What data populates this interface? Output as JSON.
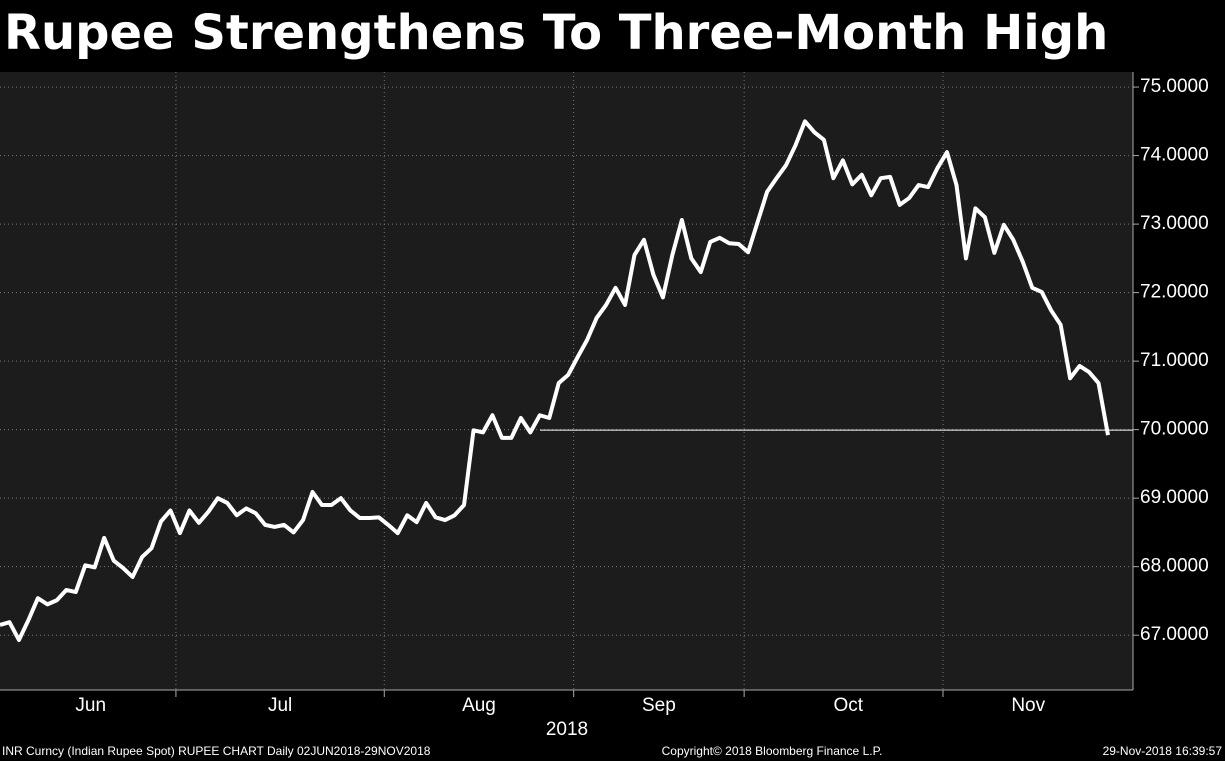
{
  "chart_data": {
    "type": "line",
    "title": "Rupee Strengthens To Three-Month High",
    "xlabel": "2018",
    "categories": [
      null,
      null,
      null,
      null,
      null,
      null,
      null,
      null,
      null,
      null,
      "Jun",
      null,
      null,
      null,
      null,
      null,
      null,
      null,
      null,
      null,
      null,
      null,
      null,
      null,
      null,
      null,
      null,
      null,
      null,
      null,
      "Jul",
      null,
      null,
      null,
      null,
      null,
      null,
      null,
      null,
      null,
      null,
      null,
      null,
      null,
      null,
      null,
      null,
      null,
      null,
      null,
      null,
      "Aug",
      null,
      null,
      null,
      null,
      null,
      null,
      null,
      null,
      null,
      null,
      null,
      null,
      null,
      null,
      null,
      null,
      null,
      null,
      "Sep",
      null,
      null,
      null,
      null,
      null,
      null,
      null,
      null,
      null,
      null,
      null,
      null,
      null,
      null,
      null,
      null,
      null,
      null,
      null,
      "Oct",
      null,
      null,
      null,
      null,
      null,
      null,
      null,
      null,
      null,
      null,
      null,
      null,
      null,
      null,
      null,
      null,
      null,
      null,
      "Nov",
      null,
      null,
      null,
      null,
      null,
      null,
      null,
      null
    ],
    "series": [
      {
        "name": "INR Curncy",
        "color": "#ffffff",
        "values": [
          67.15,
          67.19,
          66.93,
          67.22,
          67.54,
          67.45,
          67.51,
          67.66,
          67.63,
          68.02,
          67.99,
          68.42,
          68.09,
          67.98,
          67.85,
          68.14,
          68.27,
          68.66,
          68.82,
          68.49,
          68.82,
          68.64,
          68.8,
          69.0,
          68.93,
          68.75,
          68.85,
          68.78,
          68.61,
          68.58,
          68.61,
          68.5,
          68.68,
          69.09,
          68.9,
          68.9,
          69.0,
          68.82,
          68.71,
          68.71,
          68.72,
          68.61,
          68.49,
          68.75,
          68.65,
          68.93,
          68.72,
          68.68,
          68.75,
          68.9,
          69.99,
          69.96,
          70.21,
          69.88,
          69.88,
          70.17,
          69.96,
          70.21,
          70.17,
          70.68,
          70.8,
          71.06,
          71.31,
          71.63,
          71.82,
          72.07,
          71.82,
          72.55,
          72.77,
          72.26,
          71.93,
          72.55,
          73.06,
          72.5,
          72.3,
          72.74,
          72.8,
          72.72,
          72.71,
          72.59,
          73.03,
          73.47,
          73.67,
          73.86,
          74.15,
          74.5,
          74.34,
          74.23,
          73.67,
          73.93,
          73.58,
          73.72,
          73.42,
          73.67,
          73.69,
          73.28,
          73.38,
          73.57,
          73.54,
          73.82,
          74.05,
          73.57,
          72.5,
          73.23,
          73.1,
          72.58,
          72.99,
          72.77,
          72.45,
          72.07,
          72.01,
          71.74,
          71.53,
          70.75,
          70.93,
          70.84,
          70.68,
          69.92
        ]
      }
    ],
    "ylim": [
      66.2,
      75.22
    ],
    "yticks": [
      {
        "value": 67,
        "label": "67.0000"
      },
      {
        "value": 68,
        "label": "68.0000"
      },
      {
        "value": 69,
        "label": "69.0000"
      },
      {
        "value": 70,
        "label": "70.0000"
      },
      {
        "value": 71,
        "label": "71.0000"
      },
      {
        "value": 72,
        "label": "72.0000"
      },
      {
        "value": 73,
        "label": "73.0000"
      },
      {
        "value": 74,
        "label": "74.0000"
      },
      {
        "value": 75,
        "label": "75.0000"
      }
    ],
    "grid": true,
    "last_value_line": true,
    "footer": {
      "left": "INR Curncy (Indian Rupee Spot) RUPEE CHART  Daily 02JUN2018-29NOV2018",
      "center": "Copyright© 2018 Bloomberg Finance L.P.",
      "right": "29-Nov-2018 16:39:57"
    }
  }
}
